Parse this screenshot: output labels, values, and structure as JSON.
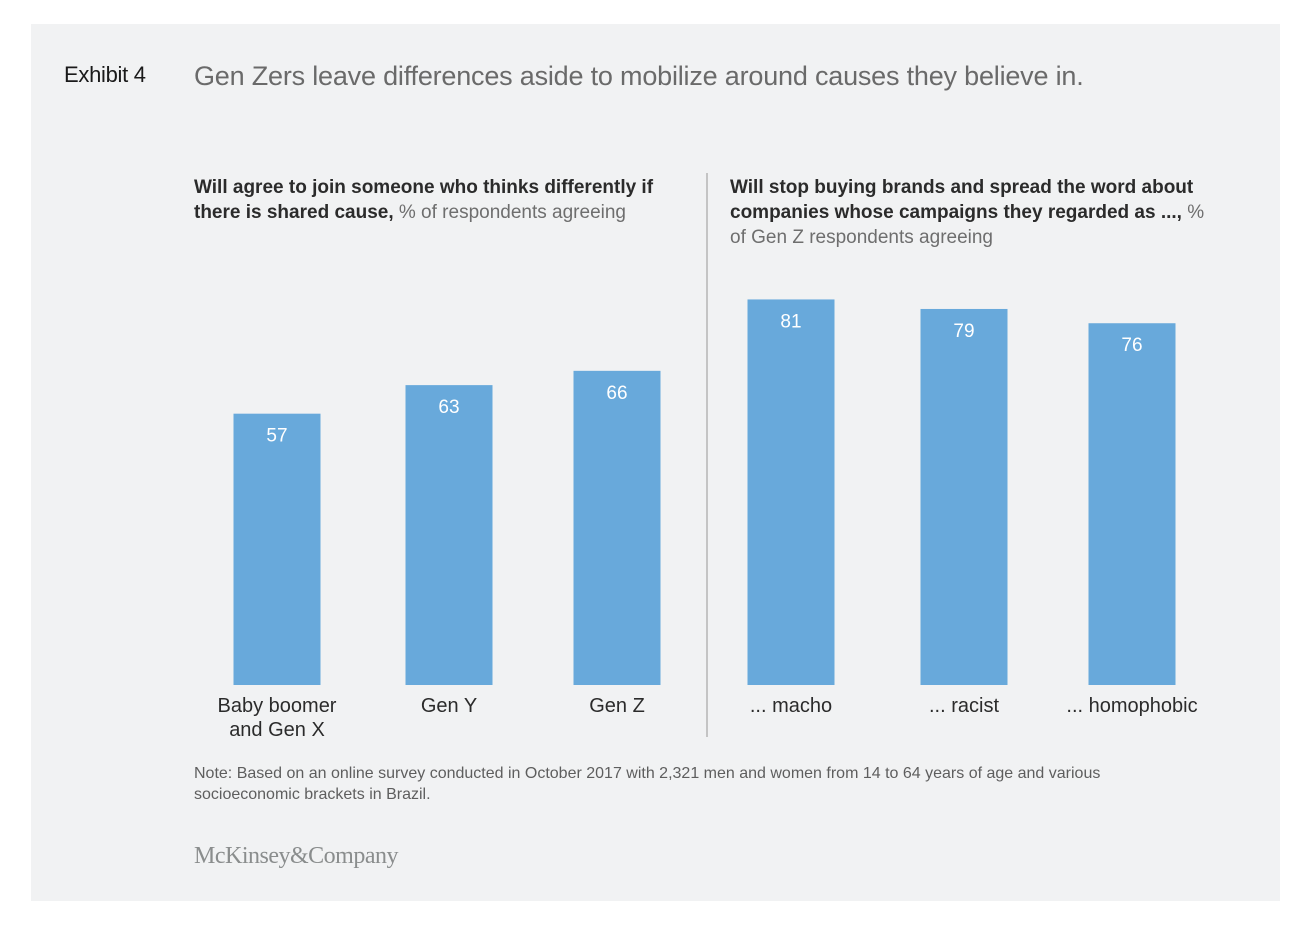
{
  "header": {
    "exhibit_label": "Exhibit 4",
    "title": "Gen Zers leave differences aside to mobilize around causes they believe in."
  },
  "panels": [
    {
      "subtitle_bold": "Will agree to join someone who thinks differently if there is shared cause,",
      "subtitle_regular": " % of respondents agreeing"
    },
    {
      "subtitle_bold": "Will stop buying brands and spread the word about companies whose campaigns they regarded as ...,",
      "subtitle_regular": " % of Gen Z respondents agreeing"
    }
  ],
  "chart_data": [
    {
      "type": "bar",
      "title": "Will agree to join someone who thinks differently if there is shared cause, % of respondents agreeing",
      "categories": [
        [
          "Baby boomer",
          "and Gen X"
        ],
        [
          "Gen Y"
        ],
        [
          "Gen Z"
        ]
      ],
      "values": [
        57,
        63,
        66
      ],
      "xlabel": "",
      "ylabel": "% of respondents agreeing",
      "ylim": [
        0,
        100
      ],
      "grid": false,
      "bar_color": "#68a9db",
      "value_label_color": "#ffffff"
    },
    {
      "type": "bar",
      "title": "Will stop buying brands and spread the word about companies whose campaigns they regarded as ..., % of Gen Z respondents agreeing",
      "categories": [
        [
          "... macho"
        ],
        [
          "... racist"
        ],
        [
          "... homophobic"
        ]
      ],
      "values": [
        81,
        79,
        76
      ],
      "xlabel": "",
      "ylabel": "% of Gen Z respondents agreeing",
      "ylim": [
        0,
        100
      ],
      "grid": false,
      "bar_color": "#68a9db",
      "value_label_color": "#ffffff"
    }
  ],
  "footer": {
    "note": "Note: Based on an online survey conducted in October 2017 with 2,321 men and women from 14 to 64 years of age and various socioeconomic brackets in Brazil.",
    "logo": "McKinsey&Company"
  }
}
